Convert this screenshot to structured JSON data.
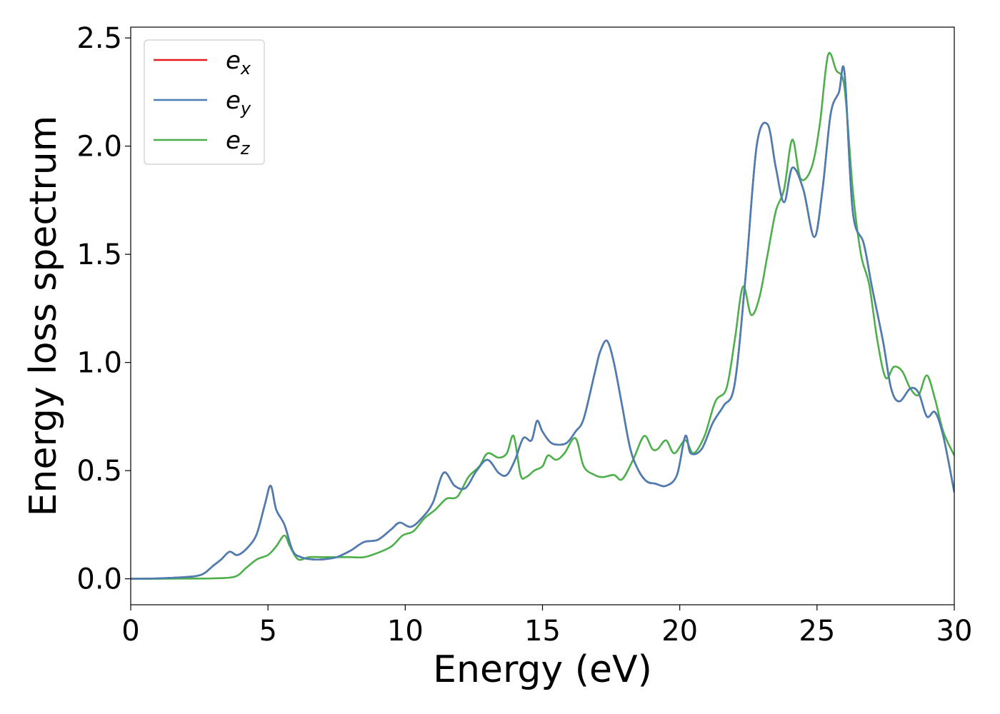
{
  "chart_data": {
    "type": "line",
    "title": "",
    "xlabel": "Energy (eV)",
    "ylabel": "Energy loss spectrum",
    "xlim": [
      0,
      30
    ],
    "ylim": [
      -0.12,
      2.55
    ],
    "xticks": [
      0,
      5,
      10,
      15,
      20,
      25,
      30
    ],
    "xtick_labels": [
      "0",
      "5",
      "10",
      "15",
      "20",
      "25",
      "30"
    ],
    "yticks": [
      0.0,
      0.5,
      1.0,
      1.5,
      2.0,
      2.5
    ],
    "ytick_labels": [
      "0.0",
      "0.5",
      "1.0",
      "1.5",
      "2.0",
      "2.5"
    ],
    "grid": false,
    "legend_position": "top-left",
    "series": [
      {
        "name": "e",
        "subscript": "x",
        "color": "#e41a1c",
        "x": [
          0,
          1,
          2,
          2.6,
          3,
          3.3,
          3.6,
          3.9,
          4.3,
          4.6,
          4.9,
          5.1,
          5.3,
          5.6,
          5.9,
          6.2,
          6.6,
          7,
          7.5,
          8,
          8.5,
          9,
          9.5,
          9.8,
          10.2,
          10.6,
          11,
          11.4,
          11.8,
          12.2,
          12.6,
          13,
          13.4,
          13.7,
          14,
          14.3,
          14.6,
          14.8,
          15,
          15.3,
          15.6,
          15.9,
          16.2,
          16.5,
          16.9,
          17.1,
          17.35,
          17.6,
          17.9,
          18.2,
          18.5,
          18.8,
          19.1,
          19.5,
          19.9,
          20.2,
          20.4,
          20.8,
          21.2,
          21.6,
          22,
          22.4,
          22.8,
          23.2,
          23.5,
          23.8,
          24.1,
          24.5,
          24.9,
          25.2,
          25.5,
          25.8,
          26,
          26.3,
          26.7,
          27,
          27.4,
          27.7,
          28,
          28.4,
          28.7,
          29,
          29.3,
          29.6,
          30
        ],
        "y": [
          0,
          0.002,
          0.008,
          0.02,
          0.06,
          0.09,
          0.125,
          0.11,
          0.15,
          0.21,
          0.35,
          0.43,
          0.32,
          0.25,
          0.13,
          0.1,
          0.09,
          0.09,
          0.1,
          0.13,
          0.17,
          0.18,
          0.23,
          0.26,
          0.24,
          0.28,
          0.35,
          0.49,
          0.43,
          0.42,
          0.5,
          0.55,
          0.49,
          0.48,
          0.55,
          0.65,
          0.64,
          0.73,
          0.68,
          0.63,
          0.62,
          0.63,
          0.68,
          0.74,
          0.95,
          1.05,
          1.1,
          1.0,
          0.8,
          0.6,
          0.5,
          0.45,
          0.44,
          0.43,
          0.48,
          0.66,
          0.58,
          0.6,
          0.72,
          0.8,
          0.9,
          1.4,
          2.0,
          2.1,
          1.9,
          1.74,
          1.9,
          1.8,
          1.58,
          1.8,
          2.15,
          2.25,
          2.34,
          1.7,
          1.55,
          1.35,
          1.1,
          0.88,
          0.82,
          0.88,
          0.86,
          0.75,
          0.77,
          0.66,
          0.4
        ]
      },
      {
        "name": "e",
        "subscript": "y",
        "color": "#4a7fb5",
        "x": [
          0,
          1,
          2,
          2.6,
          3,
          3.3,
          3.6,
          3.9,
          4.3,
          4.6,
          4.9,
          5.1,
          5.3,
          5.6,
          5.9,
          6.2,
          6.6,
          7,
          7.5,
          8,
          8.5,
          9,
          9.5,
          9.8,
          10.2,
          10.6,
          11,
          11.4,
          11.8,
          12.2,
          12.6,
          13,
          13.4,
          13.7,
          14,
          14.3,
          14.6,
          14.8,
          15,
          15.3,
          15.6,
          15.9,
          16.2,
          16.5,
          16.9,
          17.1,
          17.35,
          17.6,
          17.9,
          18.2,
          18.5,
          18.8,
          19.1,
          19.5,
          19.9,
          20.2,
          20.4,
          20.8,
          21.2,
          21.6,
          22,
          22.4,
          22.8,
          23.2,
          23.5,
          23.8,
          24.1,
          24.5,
          24.9,
          25.2,
          25.5,
          25.8,
          26,
          26.3,
          26.7,
          27,
          27.4,
          27.7,
          28,
          28.4,
          28.7,
          29,
          29.3,
          29.6,
          30
        ],
        "y": [
          0,
          0.002,
          0.008,
          0.02,
          0.06,
          0.09,
          0.125,
          0.11,
          0.15,
          0.21,
          0.35,
          0.43,
          0.32,
          0.25,
          0.13,
          0.1,
          0.09,
          0.09,
          0.1,
          0.13,
          0.17,
          0.18,
          0.23,
          0.26,
          0.24,
          0.28,
          0.35,
          0.49,
          0.43,
          0.42,
          0.5,
          0.55,
          0.49,
          0.48,
          0.55,
          0.65,
          0.64,
          0.73,
          0.68,
          0.63,
          0.62,
          0.63,
          0.68,
          0.74,
          0.95,
          1.05,
          1.1,
          1.0,
          0.8,
          0.6,
          0.5,
          0.45,
          0.44,
          0.43,
          0.48,
          0.66,
          0.58,
          0.6,
          0.72,
          0.8,
          0.9,
          1.4,
          2.0,
          2.1,
          1.9,
          1.74,
          1.9,
          1.8,
          1.58,
          1.8,
          2.15,
          2.25,
          2.34,
          1.7,
          1.55,
          1.35,
          1.1,
          0.88,
          0.82,
          0.88,
          0.86,
          0.75,
          0.77,
          0.66,
          0.4
        ]
      },
      {
        "name": "e",
        "subscript": "z",
        "color": "#4daf4a",
        "x": [
          0,
          1,
          2,
          3,
          3.8,
          4.2,
          4.6,
          5,
          5.3,
          5.6,
          5.8,
          6.1,
          6.5,
          7,
          7.5,
          8,
          8.5,
          9,
          9.5,
          9.9,
          10.3,
          10.7,
          11.1,
          11.5,
          11.9,
          12.3,
          12.7,
          13,
          13.4,
          13.7,
          13.95,
          14.2,
          14.4,
          14.7,
          15,
          15.2,
          15.5,
          15.8,
          16.2,
          16.5,
          16.9,
          17.2,
          17.6,
          17.9,
          18.3,
          18.7,
          19,
          19.2,
          19.5,
          19.8,
          20.2,
          20.5,
          20.9,
          21.3,
          21.7,
          22,
          22.3,
          22.6,
          22.9,
          23.2,
          23.5,
          23.8,
          24.1,
          24.4,
          24.8,
          25.1,
          25.4,
          25.7,
          26,
          26.3,
          26.6,
          26.9,
          27.2,
          27.5,
          27.8,
          28.1,
          28.4,
          28.7,
          29,
          29.3,
          29.6,
          30
        ],
        "y": [
          0,
          0,
          0.001,
          0.002,
          0.01,
          0.05,
          0.09,
          0.11,
          0.15,
          0.2,
          0.15,
          0.09,
          0.1,
          0.1,
          0.1,
          0.1,
          0.1,
          0.12,
          0.15,
          0.2,
          0.22,
          0.28,
          0.32,
          0.37,
          0.38,
          0.47,
          0.52,
          0.58,
          0.56,
          0.58,
          0.66,
          0.48,
          0.47,
          0.5,
          0.52,
          0.57,
          0.55,
          0.58,
          0.65,
          0.52,
          0.48,
          0.47,
          0.48,
          0.46,
          0.55,
          0.66,
          0.6,
          0.6,
          0.64,
          0.58,
          0.64,
          0.58,
          0.66,
          0.82,
          0.88,
          1.1,
          1.35,
          1.22,
          1.3,
          1.5,
          1.7,
          1.8,
          2.03,
          1.85,
          1.9,
          2.1,
          2.42,
          2.35,
          2.27,
          1.8,
          1.5,
          1.36,
          1.1,
          0.93,
          0.98,
          0.96,
          0.88,
          0.85,
          0.94,
          0.83,
          0.68,
          0.57
        ]
      }
    ]
  }
}
